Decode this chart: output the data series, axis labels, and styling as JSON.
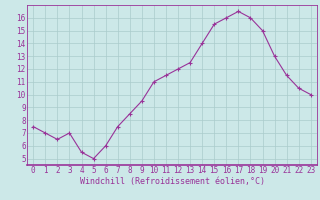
{
  "x": [
    0,
    1,
    2,
    3,
    4,
    5,
    6,
    7,
    8,
    9,
    10,
    11,
    12,
    13,
    14,
    15,
    16,
    17,
    18,
    19,
    20,
    21,
    22,
    23
  ],
  "y": [
    7.5,
    7.0,
    6.5,
    7.0,
    5.5,
    5.0,
    6.0,
    7.5,
    8.5,
    9.5,
    11.0,
    11.5,
    12.0,
    12.5,
    14.0,
    15.5,
    16.0,
    16.5,
    16.0,
    15.0,
    13.0,
    11.5,
    10.5,
    10.0
  ],
  "xlim": [
    -0.5,
    23.5
  ],
  "ylim": [
    4.5,
    17.0
  ],
  "yticks": [
    5,
    6,
    7,
    8,
    9,
    10,
    11,
    12,
    13,
    14,
    15,
    16
  ],
  "xticks": [
    0,
    1,
    2,
    3,
    4,
    5,
    6,
    7,
    8,
    9,
    10,
    11,
    12,
    13,
    14,
    15,
    16,
    17,
    18,
    19,
    20,
    21,
    22,
    23
  ],
  "xlabel": "Windchill (Refroidissement éolien,°C)",
  "line_color": "#993399",
  "marker": "+",
  "bg_color": "#cce8e8",
  "grid_color": "#aacccc",
  "axis_color": "#993399",
  "tick_color": "#993399",
  "label_color": "#993399",
  "label_fontsize": 6.0,
  "tick_fontsize": 5.5
}
